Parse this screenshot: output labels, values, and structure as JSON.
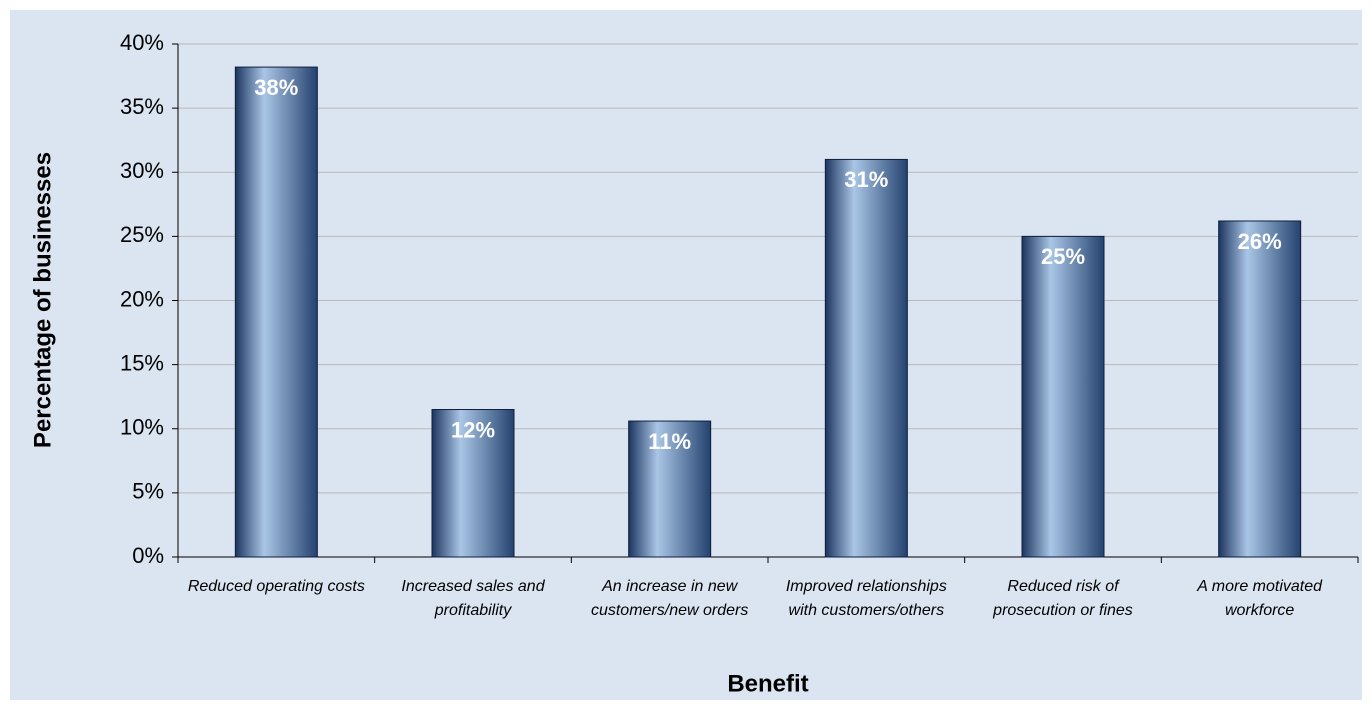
{
  "chart_data": {
    "type": "bar",
    "x_label": "Benefit",
    "y_label": "Percentage of businesses",
    "categories": [
      "Reduced operating costs",
      "Increased sales and profitability",
      "An increase in new customers/new orders",
      "Improved relationships with customers/others",
      "Reduced risk of prosecution or fines",
      "A more motivated workforce"
    ],
    "values": [
      38.2,
      11.5,
      10.6,
      31.0,
      25.0,
      26.2
    ],
    "value_labels": [
      "38%",
      "12%",
      "11%",
      "31%",
      "25%",
      "26%"
    ],
    "color": "#2b4c7e",
    "ylim": [
      0,
      40
    ],
    "yticks": [
      {
        "value": 0,
        "label": "0%"
      },
      {
        "value": 5,
        "label": "5%"
      },
      {
        "value": 10,
        "label": "10%"
      },
      {
        "value": 15,
        "label": "15%"
      },
      {
        "value": 20,
        "label": "20%"
      },
      {
        "value": 25,
        "label": "25%"
      },
      {
        "value": 30,
        "label": "30%"
      },
      {
        "value": 35,
        "label": "35%"
      },
      {
        "value": 40,
        "label": "40%"
      }
    ],
    "grid": true
  }
}
